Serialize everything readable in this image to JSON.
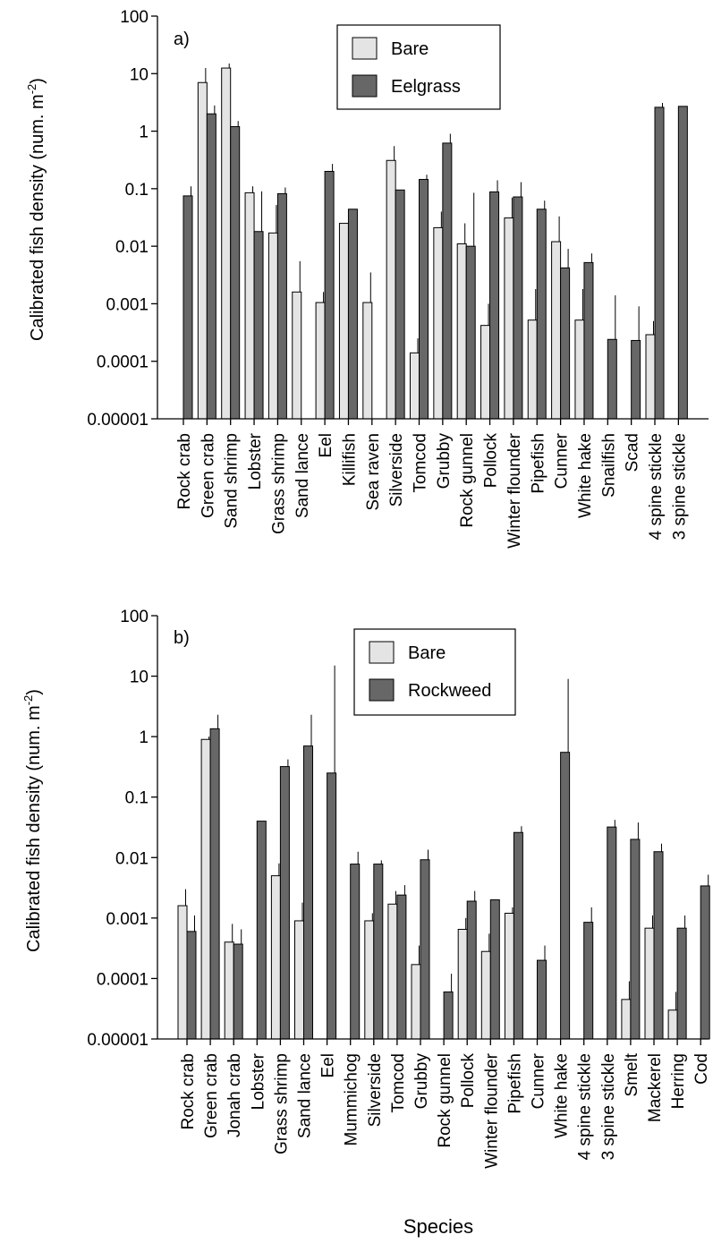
{
  "chart_data": [
    {
      "type": "bar",
      "panel_label": "a)",
      "ylabel": "Calibrated fish density (num. m",
      "ylabel_sup": "-2",
      "ylabel_close": ")",
      "xlabel": "",
      "yscale": "log",
      "ylim": [
        1e-05,
        100
      ],
      "yticks": [
        "0.00001",
        "0.0001",
        "0.001",
        "0.01",
        "0.1",
        "1",
        "10",
        "100"
      ],
      "legend_position": "top-center",
      "colors": {
        "Bare": "#e4e4e4",
        "Eelgrass": "#676767"
      },
      "categories": [
        "Rock crab",
        "Green crab",
        "Sand shrimp",
        "Lobster",
        "Grass shrimp",
        "Sand lance",
        "Eel",
        "Killifish",
        "Sea raven",
        "Silverside",
        "Tomcod",
        "Grubby",
        "Rock gunnel",
        "Pollock",
        "Winter flounder",
        "Pipefish",
        "Cunner",
        "White hake",
        "Snailfish",
        "Scad",
        "4 spine stickle",
        "3 spine stickle"
      ],
      "series": [
        {
          "name": "Bare",
          "values": [
            null,
            7,
            12.5,
            0.085,
            0.017,
            0.0016,
            0.00105,
            0.025,
            0.00105,
            0.31,
            0.00014,
            0.021,
            0.011,
            0.00042,
            0.031,
            0.00052,
            0.012,
            0.00052,
            null,
            null,
            0.00029,
            null
          ],
          "error_upper": [
            null,
            12.5,
            15,
            0.11,
            0.052,
            0.0055,
            0.0016,
            null,
            0.0035,
            0.55,
            0.00025,
            0.04,
            0.025,
            0.001,
            0.07,
            0.0018,
            0.033,
            0.0018,
            null,
            null,
            0.0005,
            null
          ]
        },
        {
          "name": "Eelgrass",
          "values": [
            0.075,
            2,
            1.2,
            0.018,
            0.082,
            null,
            0.2,
            0.044,
            null,
            0.095,
            0.145,
            0.62,
            0.01,
            0.088,
            0.072,
            0.044,
            0.0042,
            0.0052,
            0.00024,
            0.00023,
            2.6,
            2.7
          ],
          "error_upper": [
            0.11,
            2.8,
            1.5,
            0.09,
            0.105,
            null,
            0.27,
            null,
            null,
            null,
            0.175,
            0.9,
            0.085,
            0.14,
            0.13,
            0.062,
            0.009,
            0.0075,
            0.0014,
            0.0009,
            3.1,
            null
          ]
        }
      ]
    },
    {
      "type": "bar",
      "panel_label": "b)",
      "ylabel": "Calibrated fish density (num. m",
      "ylabel_sup": "-2",
      "ylabel_close": ")",
      "xlabel": "Species",
      "yscale": "log",
      "ylim": [
        1e-05,
        100
      ],
      "yticks": [
        "0.00001",
        "0.0001",
        "0.001",
        "0.01",
        "0.1",
        "1",
        "10",
        "100"
      ],
      "legend_position": "top-center",
      "colors": {
        "Bare": "#e4e4e4",
        "Rockweed": "#676767"
      },
      "categories": [
        "Rock crab",
        "Green crab",
        "Jonah crab",
        "Lobster",
        "Grass shrimp",
        "Sand lance",
        "Eel",
        "Mummichog",
        "Silverside",
        "Tomcod",
        "Grubby",
        "Rock gunnel",
        "Pollock",
        "Winter flounder",
        "Pipefish",
        "Cunner",
        "White hake",
        "4 spine stickle",
        "3 spine stickle",
        "Smelt",
        "Mackerel",
        "Herring",
        "Cod"
      ],
      "series": [
        {
          "name": "Bare",
          "values": [
            0.0016,
            0.9,
            0.0004,
            null,
            0.005,
            0.0009,
            null,
            null,
            0.0009,
            0.0017,
            0.00017,
            null,
            0.00065,
            0.00028,
            0.0012,
            null,
            null,
            null,
            null,
            4.5e-05,
            0.00068,
            3e-05,
            null
          ],
          "error_upper": [
            0.003,
            1.0,
            0.0008,
            null,
            0.008,
            0.0018,
            null,
            null,
            0.0012,
            0.0028,
            0.00035,
            null,
            0.001,
            0.00055,
            0.0015,
            null,
            null,
            null,
            null,
            9e-05,
            0.0011,
            6e-05,
            null
          ]
        },
        {
          "name": "Rockweed",
          "values": [
            0.0006,
            1.35,
            0.00037,
            0.04,
            0.32,
            0.7,
            0.25,
            0.0078,
            0.0078,
            0.0024,
            0.0092,
            6e-05,
            0.0019,
            0.002,
            0.026,
            0.0002,
            0.55,
            0.00085,
            0.032,
            0.02,
            0.0125,
            0.00068,
            0.0034
          ],
          "error_upper": [
            0.0011,
            2.3,
            0.00065,
            null,
            0.42,
            2.3,
            15,
            0.0125,
            0.009,
            0.0035,
            0.0135,
            0.00012,
            0.0028,
            null,
            0.033,
            0.00035,
            9,
            0.0015,
            0.042,
            0.038,
            0.017,
            0.0011,
            0.0052
          ]
        }
      ]
    }
  ]
}
